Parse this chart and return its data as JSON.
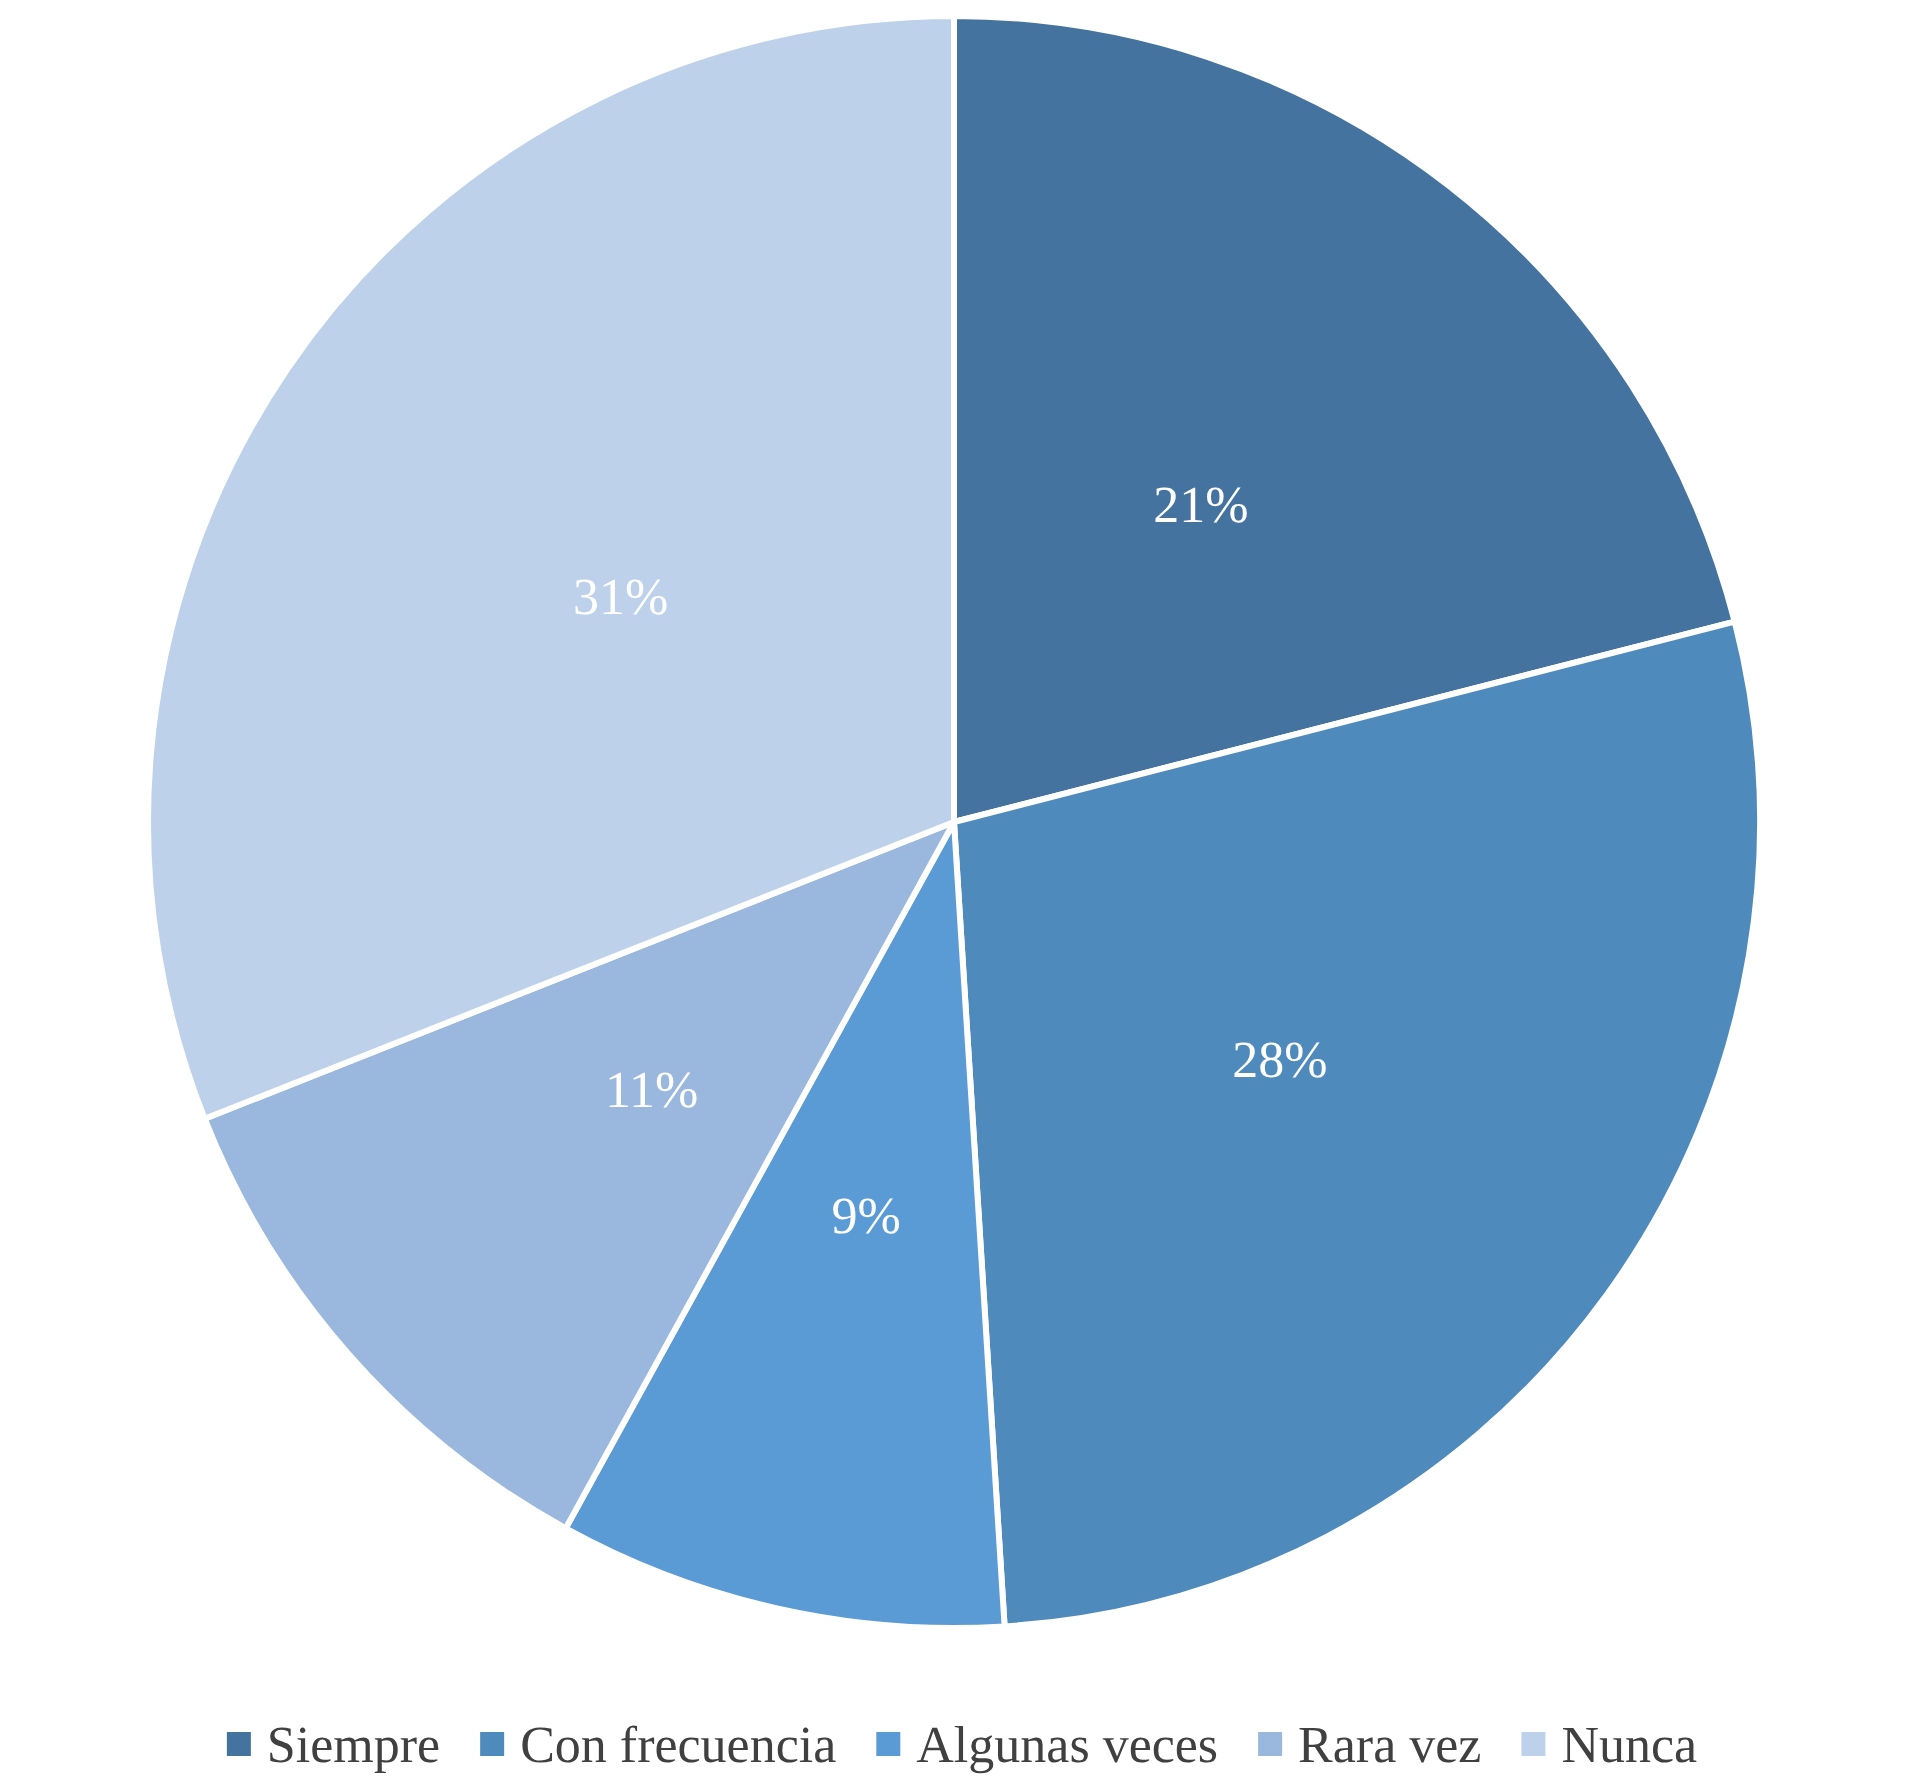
{
  "chart_data": {
    "type": "pie",
    "categories": [
      "Siempre",
      "Con frecuencia",
      "Algunas veces",
      "Rara vez",
      "Nunca"
    ],
    "values": [
      21,
      28,
      9,
      11,
      31
    ],
    "colors": [
      "#44739f",
      "#4e8abb",
      "#5b9bd5",
      "#9ab8de",
      "#bdd1ea"
    ],
    "value_labels": [
      "21%",
      "28%",
      "9%",
      "11%",
      "31%"
    ],
    "legend": "bottom"
  }
}
